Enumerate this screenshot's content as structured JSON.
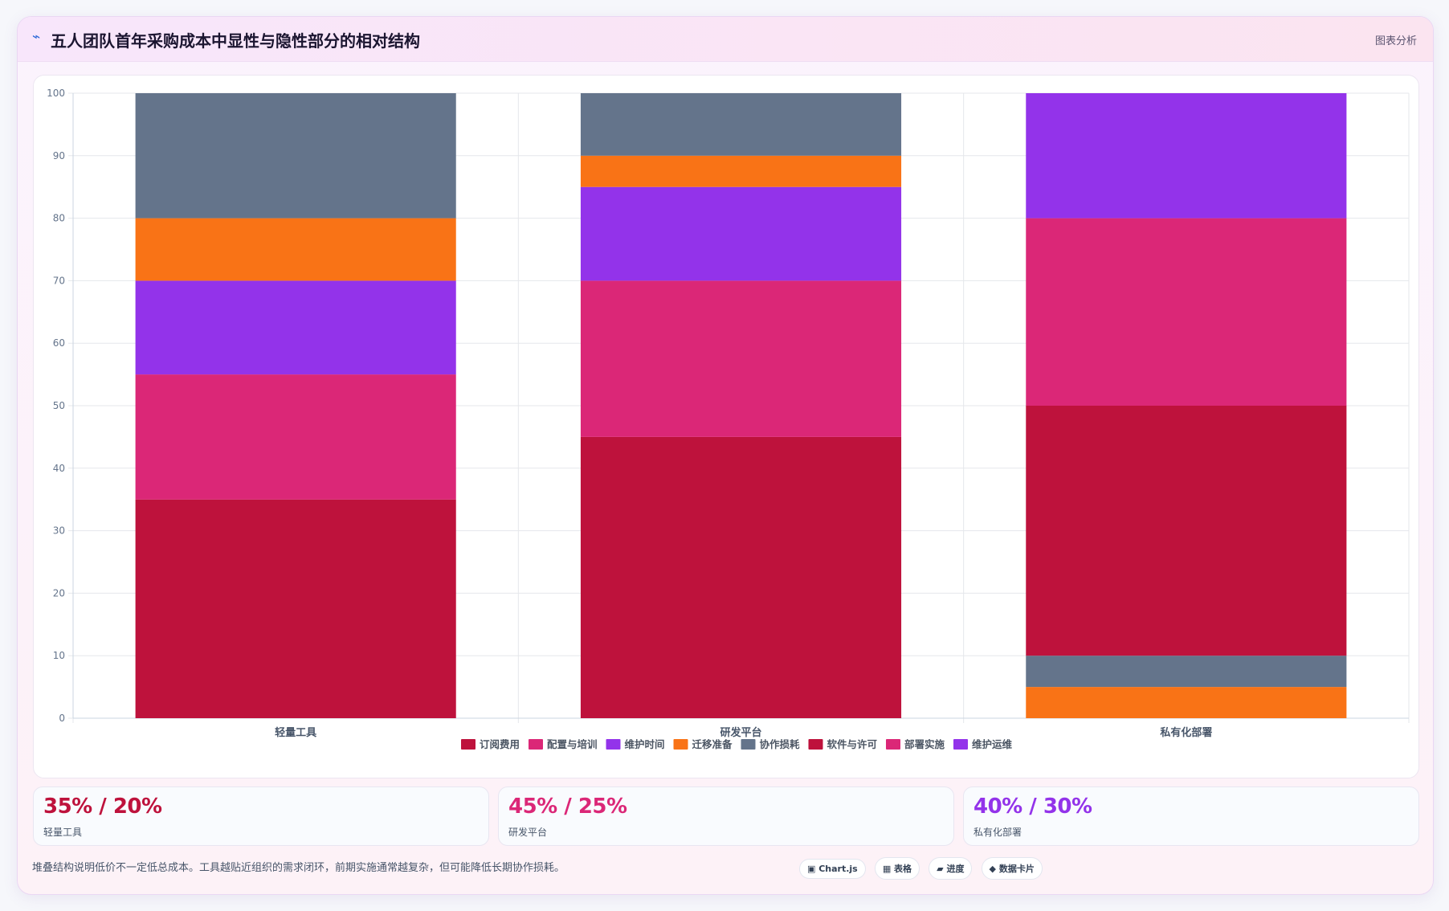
{
  "header": {
    "title": "五人团队首年采购成本中显性与隐性部分的相对结构",
    "tag": "图表分析",
    "icon": "lightning-icon"
  },
  "chart_data": {
    "type": "bar",
    "stacked": true,
    "categories": [
      "轻量工具",
      "研发平台",
      "私有化部署"
    ],
    "ylim": [
      0,
      100
    ],
    "yticks": [
      0,
      10,
      20,
      30,
      40,
      50,
      60,
      70,
      80,
      90,
      100
    ],
    "grid": true,
    "legend_position": "bottom",
    "series": [
      {
        "name": "订阅费用",
        "color": "#be123c",
        "values": [
          35,
          45,
          0
        ]
      },
      {
        "name": "配置与培训",
        "color": "#db2777",
        "values": [
          20,
          25,
          0
        ]
      },
      {
        "name": "维护时间",
        "color": "#9333ea",
        "values": [
          15,
          15,
          0
        ]
      },
      {
        "name": "迁移准备",
        "color": "#f97316",
        "values": [
          10,
          5,
          5
        ]
      },
      {
        "name": "协作损耗",
        "color": "#64748b",
        "values": [
          20,
          10,
          5
        ]
      },
      {
        "name": "软件与许可",
        "color": "#be123c",
        "values": [
          0,
          0,
          40
        ]
      },
      {
        "name": "部署实施",
        "color": "#db2777",
        "values": [
          0,
          0,
          30
        ]
      },
      {
        "name": "维护运维",
        "color": "#9333ea",
        "values": [
          0,
          0,
          20
        ]
      }
    ]
  },
  "stats": [
    {
      "value": "35% / 20%",
      "label": "轻量工具",
      "color": "#be123c"
    },
    {
      "value": "45% / 25%",
      "label": "研发平台",
      "color": "#db2777"
    },
    {
      "value": "40% / 30%",
      "label": "私有化部署",
      "color": "#9333ea"
    }
  ],
  "footer": {
    "note": "堆叠结构说明低价不一定低总成本。工具越贴近组织的需求闭环，前期实施通常越复杂，但可能降低长期协作损耗。",
    "chips": [
      "▣ Chart.js",
      "▦ 表格",
      "▰ 进度",
      "◆ 数据卡片"
    ]
  }
}
